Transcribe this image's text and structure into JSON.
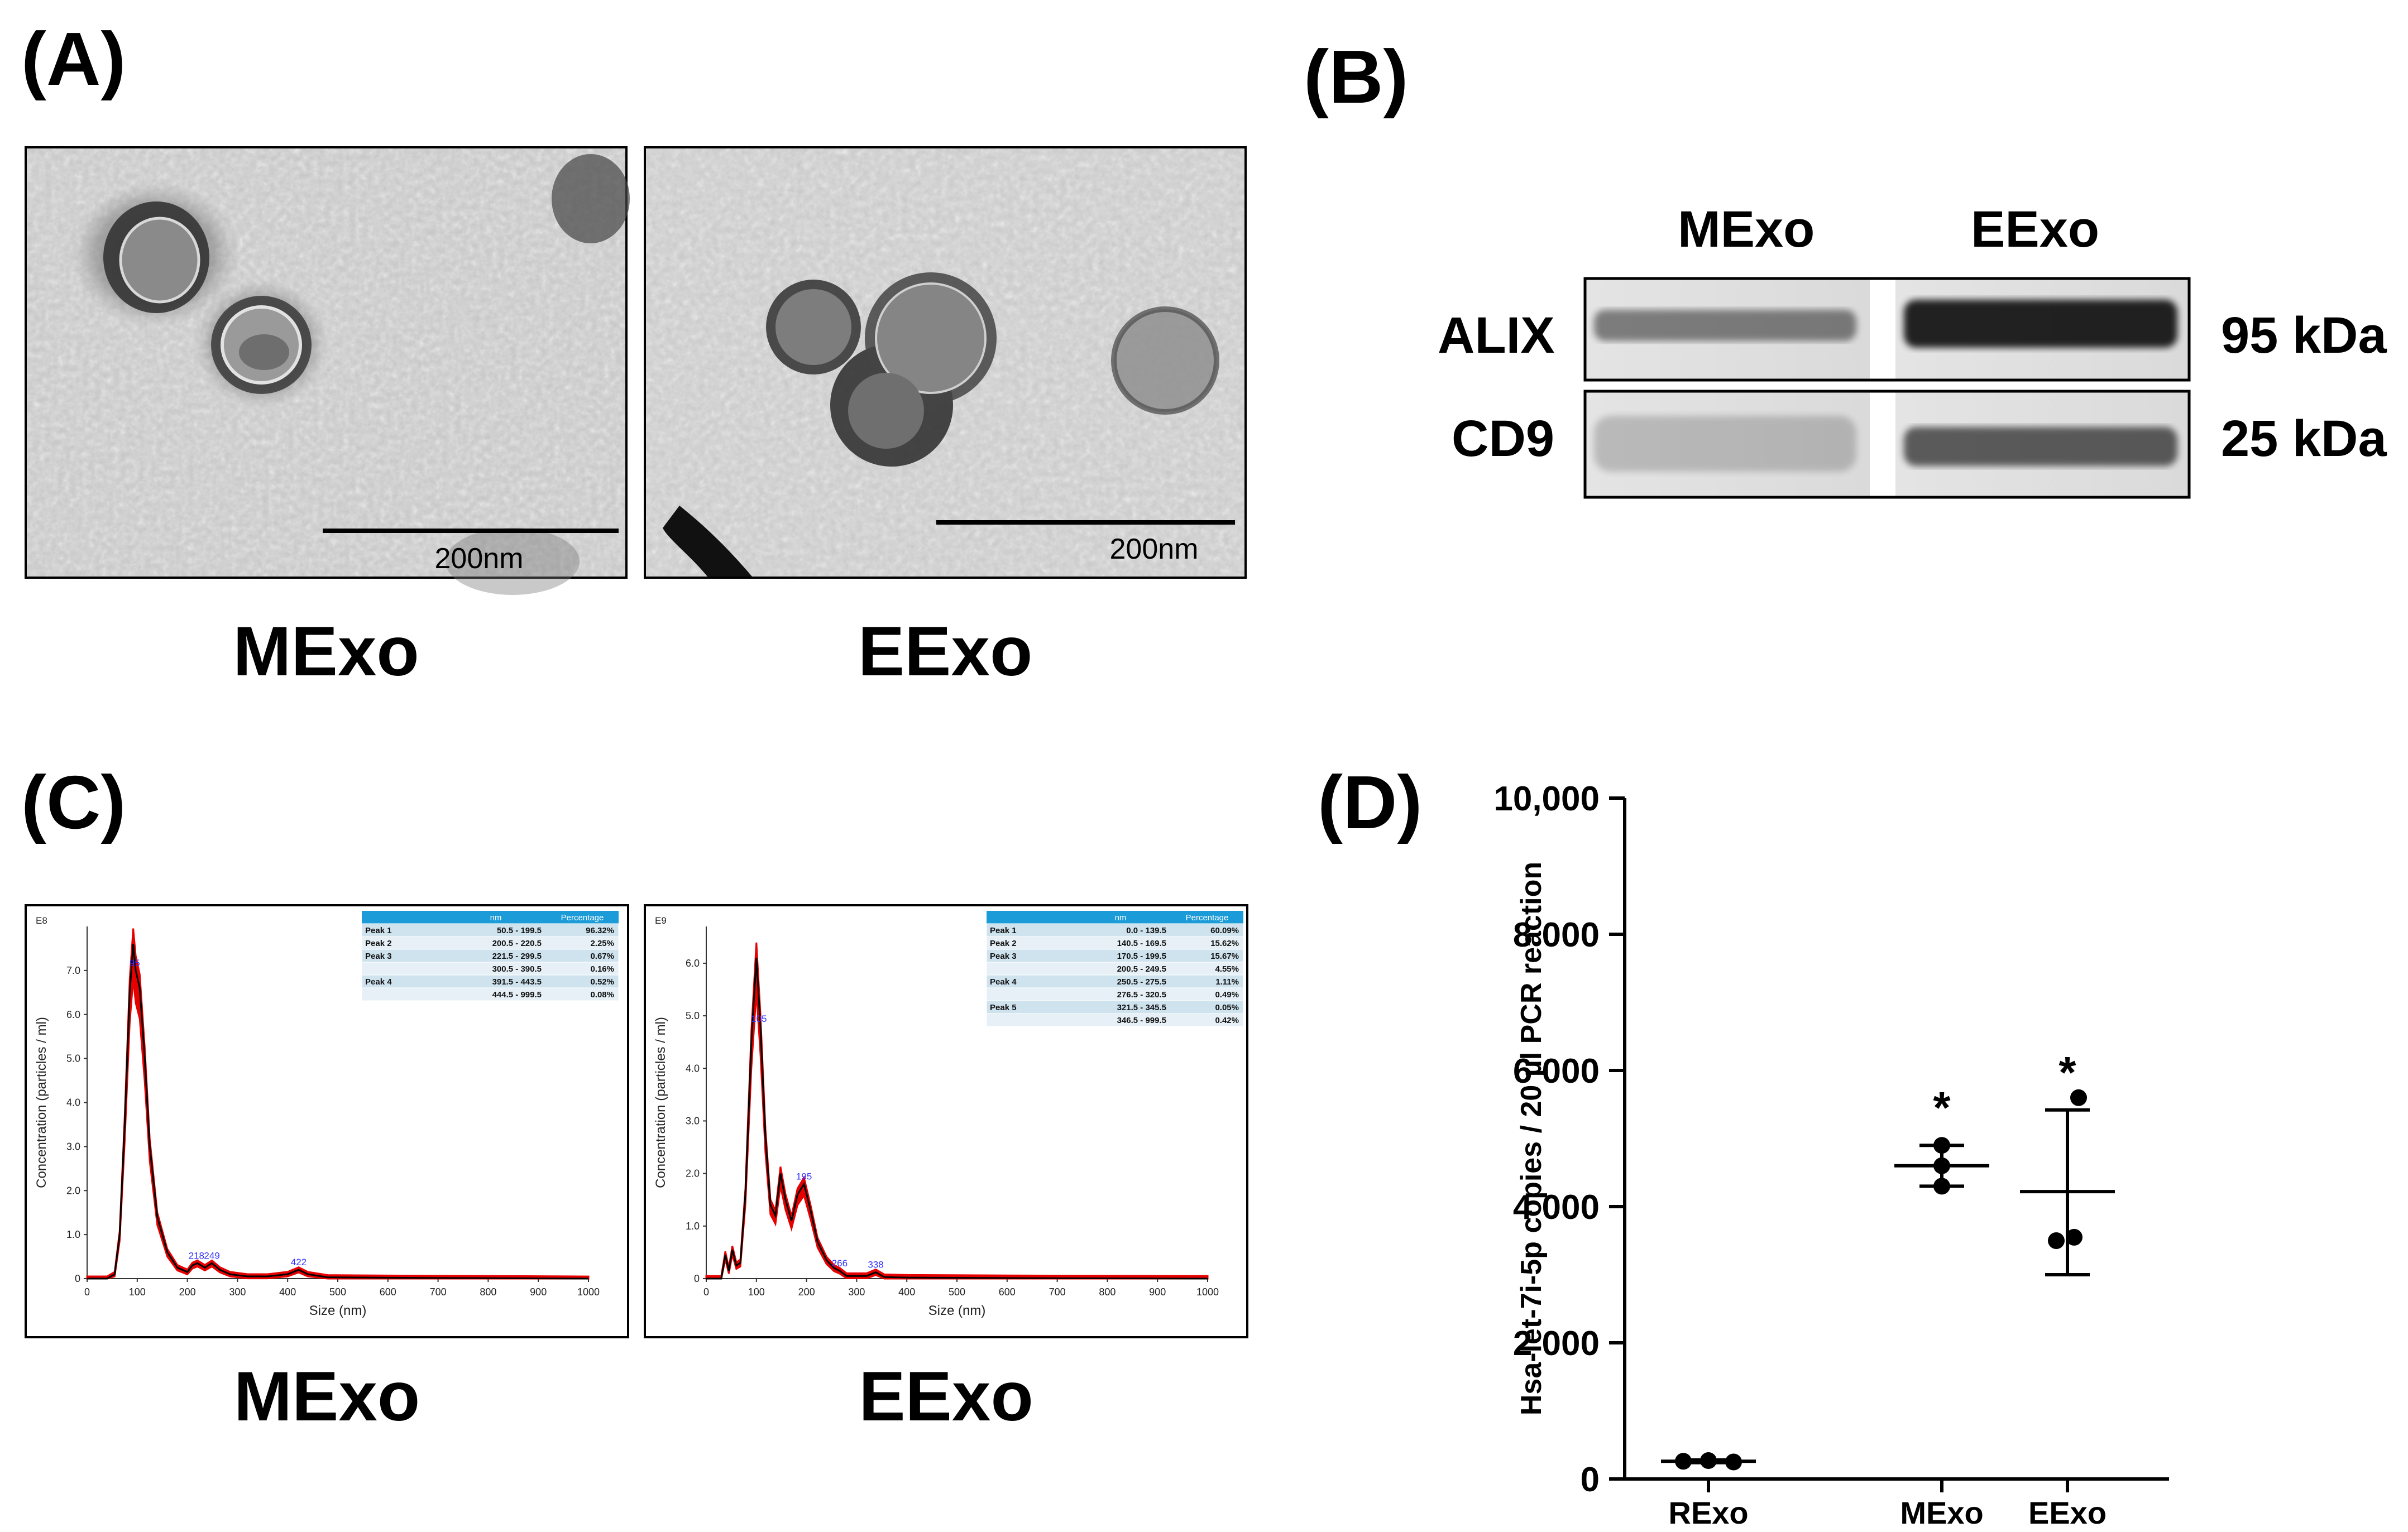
{
  "panel_a": {
    "label": "(A)",
    "images": [
      {
        "caption": "MExo",
        "scale_bar": "200nm"
      },
      {
        "caption": "EExo",
        "scale_bar": "200nm"
      }
    ]
  },
  "panel_b": {
    "label": "(B)",
    "columns": [
      "MExo",
      "EExo"
    ],
    "rows": [
      {
        "name": "ALIX",
        "size": "95 kDa",
        "band_intensity": [
          0.45,
          0.85
        ]
      },
      {
        "name": "CD9",
        "size": "25 kDa",
        "band_intensity": [
          0.18,
          0.6
        ]
      }
    ]
  },
  "panel_c": {
    "label": "(C)",
    "plots": [
      {
        "caption": "MExo",
        "exponent": "E8",
        "ylabel": "Concentration (particles / ml)",
        "xlabel": "Size (nm)",
        "yticks": [
          "0",
          "1.0",
          "2.0",
          "3.0",
          "4.0",
          "5.0",
          "6.0",
          "7.0"
        ],
        "xticks": [
          "0",
          "100",
          "200",
          "300",
          "400",
          "500",
          "600",
          "700",
          "800",
          "900",
          "1000"
        ],
        "peak_labels": [
          "95",
          "218",
          "249",
          "422"
        ],
        "table_header": [
          "",
          "nm",
          "Percentage"
        ],
        "table_rows": [
          [
            "Peak 1",
            "50.5  - 199.5",
            "96.32%"
          ],
          [
            "Peak 2",
            "200.5  - 220.5",
            "2.25%"
          ],
          [
            "Peak 3",
            "221.5  - 299.5",
            "0.67%"
          ],
          [
            "",
            "300.5  - 390.5",
            "0.16%"
          ],
          [
            "Peak 4",
            "391.5  - 443.5",
            "0.52%"
          ],
          [
            "",
            "444.5  - 999.5",
            "0.08%"
          ]
        ]
      },
      {
        "caption": "EExo",
        "exponent": "E9",
        "ylabel": "Concentration (particles / ml)",
        "xlabel": "Size (nm)",
        "yticks": [
          "0",
          "1.0",
          "2.0",
          "3.0",
          "4.0",
          "5.0",
          "6.0"
        ],
        "xticks": [
          "0",
          "100",
          "200",
          "300",
          "400",
          "500",
          "600",
          "700",
          "800",
          "900",
          "1000"
        ],
        "peak_labels": [
          "105",
          "195",
          "266",
          "338"
        ],
        "table_header": [
          "",
          "nm",
          "Percentage"
        ],
        "table_rows": [
          [
            "Peak 1",
            "0.0  - 139.5",
            "60.09%"
          ],
          [
            "Peak 2",
            "140.5  - 169.5",
            "15.62%"
          ],
          [
            "Peak 3",
            "170.5  - 199.5",
            "15.67%"
          ],
          [
            "",
            "200.5  - 249.5",
            "4.55%"
          ],
          [
            "Peak 4",
            "250.5  - 275.5",
            "1.11%"
          ],
          [
            "",
            "276.5  - 320.5",
            "0.49%"
          ],
          [
            "Peak 5",
            "321.5  - 345.5",
            "0.05%"
          ],
          [
            "",
            "346.5  - 999.5",
            "0.42%"
          ]
        ]
      }
    ]
  },
  "panel_d": {
    "label": "(D)"
  },
  "chart_data": [
    {
      "type": "line",
      "xlabel": "Size (nm)",
      "ylabel": "Concentration (particles / ml)",
      "y_unit": "E8",
      "xlim": [
        0,
        1000
      ],
      "ylim": [
        0,
        8
      ],
      "series": [
        {
          "x": [
            0,
            40,
            55,
            65,
            75,
            85,
            92,
            97,
            105,
            115,
            125,
            140,
            160,
            180,
            200,
            210,
            220,
            235,
            249,
            265,
            285,
            320,
            360,
            400,
            422,
            440,
            480,
            600,
            1000
          ],
          "y": [
            0,
            0,
            0.1,
            1.0,
            3.5,
            6.5,
            7.6,
            7.0,
            6.6,
            5.0,
            3.0,
            1.4,
            0.6,
            0.25,
            0.15,
            0.3,
            0.35,
            0.25,
            0.35,
            0.2,
            0.1,
            0.05,
            0.05,
            0.1,
            0.2,
            0.1,
            0.03,
            0.02,
            0
          ]
        }
      ]
    },
    {
      "type": "line",
      "xlabel": "Size (nm)",
      "ylabel": "Concentration (particles / ml)",
      "y_unit": "E9",
      "xlim": [
        0,
        1000
      ],
      "ylim": [
        0,
        6.7
      ],
      "series": [
        {
          "x": [
            0,
            30,
            38,
            45,
            52,
            60,
            68,
            78,
            90,
            100,
            108,
            118,
            128,
            138,
            148,
            158,
            170,
            182,
            195,
            208,
            222,
            240,
            255,
            266,
            280,
            300,
            320,
            338,
            355,
            400,
            600,
            1000
          ],
          "y": [
            0,
            0,
            0.45,
            0.15,
            0.55,
            0.25,
            0.3,
            1.6,
            4.5,
            6.1,
            4.8,
            2.7,
            1.4,
            1.2,
            2.0,
            1.5,
            1.1,
            1.6,
            1.8,
            1.3,
            0.7,
            0.35,
            0.2,
            0.15,
            0.05,
            0.05,
            0.05,
            0.12,
            0.03,
            0.02,
            0.01,
            0
          ]
        }
      ]
    },
    {
      "type": "scatter",
      "ylabel": "Hsa-let-7i-5p copies / 20 µl PCR reaction",
      "categories": [
        "RExo",
        "MExo",
        "EExo"
      ],
      "ylim": [
        0,
        10000
      ],
      "yticks": [
        "0",
        "2 000",
        "4 000",
        "6 000",
        "8 000",
        "10,000"
      ],
      "points": [
        [
          260,
          270,
          250
        ],
        [
          4300,
          4600,
          4900
        ],
        [
          3500,
          3550,
          5600
        ]
      ],
      "mean": [
        260,
        4600,
        4220
      ],
      "sd_low": [
        240,
        4300,
        3000
      ],
      "sd_high": [
        280,
        4900,
        5420
      ],
      "significance": [
        "",
        "*",
        "*"
      ]
    }
  ]
}
